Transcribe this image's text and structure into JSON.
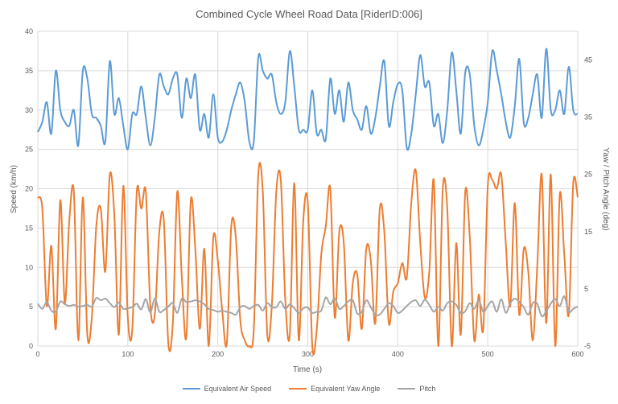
{
  "chart_data": {
    "type": "line",
    "title": "Combined Cycle Wheel Road Data [RiderID:006]",
    "xlabel": "Time (s)",
    "ylabel": "Speed (km/h)",
    "y2label": "Yaw / Pitch Angle (deg)",
    "xlim": [
      0,
      600
    ],
    "ylim": [
      0,
      40
    ],
    "y2lim": [
      -5,
      50
    ],
    "xticks": [
      "0",
      "100",
      "200",
      "300",
      "400",
      "500",
      "600"
    ],
    "yticks": [
      "0",
      "5",
      "10",
      "15",
      "20",
      "25",
      "30",
      "35",
      "40"
    ],
    "y2ticks": [
      "-5",
      "5",
      "15",
      "25",
      "35",
      "45"
    ],
    "grid": true,
    "legend_position": "bottom",
    "x": [
      0,
      5,
      10,
      15,
      20,
      25,
      30,
      35,
      40,
      45,
      50,
      55,
      60,
      65,
      70,
      75,
      80,
      85,
      90,
      95,
      100,
      105,
      110,
      115,
      120,
      125,
      130,
      135,
      140,
      145,
      150,
      155,
      160,
      165,
      170,
      175,
      180,
      185,
      190,
      195,
      200,
      205,
      210,
      215,
      220,
      225,
      230,
      235,
      240,
      245,
      250,
      255,
      260,
      265,
      270,
      275,
      280,
      285,
      290,
      295,
      300,
      305,
      310,
      315,
      320,
      325,
      330,
      335,
      340,
      345,
      350,
      355,
      360,
      365,
      370,
      375,
      380,
      385,
      390,
      395,
      400,
      405,
      410,
      415,
      420,
      425,
      430,
      435,
      440,
      445,
      450,
      455,
      460,
      465,
      470,
      475,
      480,
      485,
      490,
      495,
      500,
      505,
      510,
      515,
      520,
      525,
      530,
      535,
      540,
      545,
      550,
      555,
      560,
      565,
      570,
      575,
      580,
      585,
      590,
      595,
      600
    ],
    "series": [
      {
        "name": "Equivalent Air Speed",
        "axis": "left",
        "color": "#5b9bd5",
        "values": [
          27.2,
          28.5,
          31,
          27,
          35,
          30,
          28.5,
          28,
          30,
          25.5,
          35,
          34,
          29.5,
          29,
          28,
          26,
          36.2,
          29.5,
          31.5,
          28,
          25,
          29.5,
          29.5,
          33,
          29,
          25.5,
          29,
          34.5,
          33,
          32,
          34,
          34.5,
          29,
          34,
          31.5,
          34.5,
          27.5,
          29.5,
          26.5,
          32,
          26.5,
          26,
          27.5,
          30,
          32,
          33.5,
          31,
          26,
          26,
          36.7,
          35,
          34,
          34.5,
          31,
          29.5,
          31,
          37.5,
          33,
          27.5,
          27.5,
          27.5,
          32.5,
          27,
          27.5,
          26.3,
          34,
          29.5,
          32.5,
          28.5,
          33.5,
          30,
          28.8,
          27.5,
          30.5,
          27,
          29,
          33,
          36.2,
          28,
          31,
          33.3,
          32.5,
          25.2,
          27,
          32,
          37,
          33,
          33.5,
          28,
          29.5,
          25.8,
          30,
          37.3,
          32.5,
          27,
          34.8,
          34.5,
          28,
          25.5,
          27.5,
          31,
          37.5,
          35,
          32,
          28.5,
          26.5,
          30.5,
          36.5,
          28.4,
          29,
          32,
          34.5,
          29,
          37.8,
          30,
          30,
          32.5,
          29.5,
          35.5,
          30,
          29.5
        ]
      },
      {
        "name": "Equivalent Yaw Angle",
        "axis": "right",
        "color": "#ed7d31",
        "values": [
          21,
          19,
          2,
          12.5,
          -2,
          20.5,
          2.5,
          17,
          22,
          -4,
          21,
          -3,
          0,
          16,
          19,
          8,
          25,
          18,
          -3,
          23,
          0,
          -2,
          22,
          19,
          22,
          2,
          0.5,
          15,
          17,
          -4.5,
          -1,
          22,
          7,
          -3.5,
          20.5,
          12,
          -2,
          12,
          -5,
          14,
          10,
          1,
          -4.5,
          16,
          14,
          -0.5,
          -4,
          -5,
          -2,
          25,
          22,
          -3,
          2,
          22,
          24,
          3,
          -3,
          23.5,
          -4,
          17,
          20,
          -5,
          -2,
          11,
          16,
          22.5,
          0,
          15,
          13,
          -4,
          6,
          7.5,
          -2,
          12,
          10,
          -1,
          19,
          15,
          -1,
          4.5,
          6,
          9.5,
          7,
          20,
          25.7,
          13,
          3.5,
          8,
          24,
          -5,
          22.5,
          19,
          -5,
          13,
          -3,
          22,
          14,
          -4,
          4,
          -2,
          23,
          24,
          22.5,
          25,
          13,
          2,
          20,
          0.5,
          12,
          8,
          -4,
          9,
          25,
          -1,
          25,
          -5,
          21.5,
          11,
          0.5,
          23.5,
          21
        ]
      },
      {
        "name": "Pitch",
        "axis": "right",
        "color": "#a5a5a5",
        "values": [
          2.4,
          1.5,
          2.7,
          1.2,
          1.0,
          2.8,
          2.3,
          2.0,
          2.2,
          1.9,
          2.0,
          2.2,
          1.9,
          3.4,
          3.0,
          3.3,
          2.5,
          1.8,
          2.6,
          1.5,
          1.6,
          1.8,
          2.4,
          1.4,
          3.2,
          0.9,
          3.3,
          1.0,
          1.3,
          1.9,
          2.5,
          0.8,
          3.3,
          2.7,
          2.8,
          3.0,
          2.8,
          2.3,
          1.5,
          1.3,
          1.0,
          1.2,
          1.0,
          0.8,
          0.5,
          1.8,
          2.0,
          1.5,
          2.0,
          2.2,
          1.2,
          2.5,
          1.8,
          1.8,
          2.8,
          1.5,
          2.3,
          1.6,
          0.8,
          1.6,
          1.7,
          0.8,
          1.0,
          1.2,
          3.5,
          2.3,
          3.3,
          1.5,
          2.0,
          2.8,
          3.0,
          0.7,
          1.0,
          3.0,
          1.8,
          0.5,
          0.5,
          1.5,
          2.5,
          2.0,
          0.8,
          1.2,
          2.0,
          2.7,
          3.0,
          2.0,
          3.1,
          2.2,
          1.0,
          1.9,
          1.2,
          2.5,
          2.8,
          2.2,
          0.8,
          1.1,
          2.5,
          1.5,
          3.0,
          1.0,
          2.0,
          2.8,
          1.0,
          3.2,
          0.8,
          2.5,
          3.3,
          2.7,
          1.8,
          0.5,
          2.5,
          2.4,
          0.2,
          1.1,
          2.4,
          3.2,
          2.0,
          3.7,
          1.0,
          1.5,
          1.9
        ]
      }
    ]
  }
}
